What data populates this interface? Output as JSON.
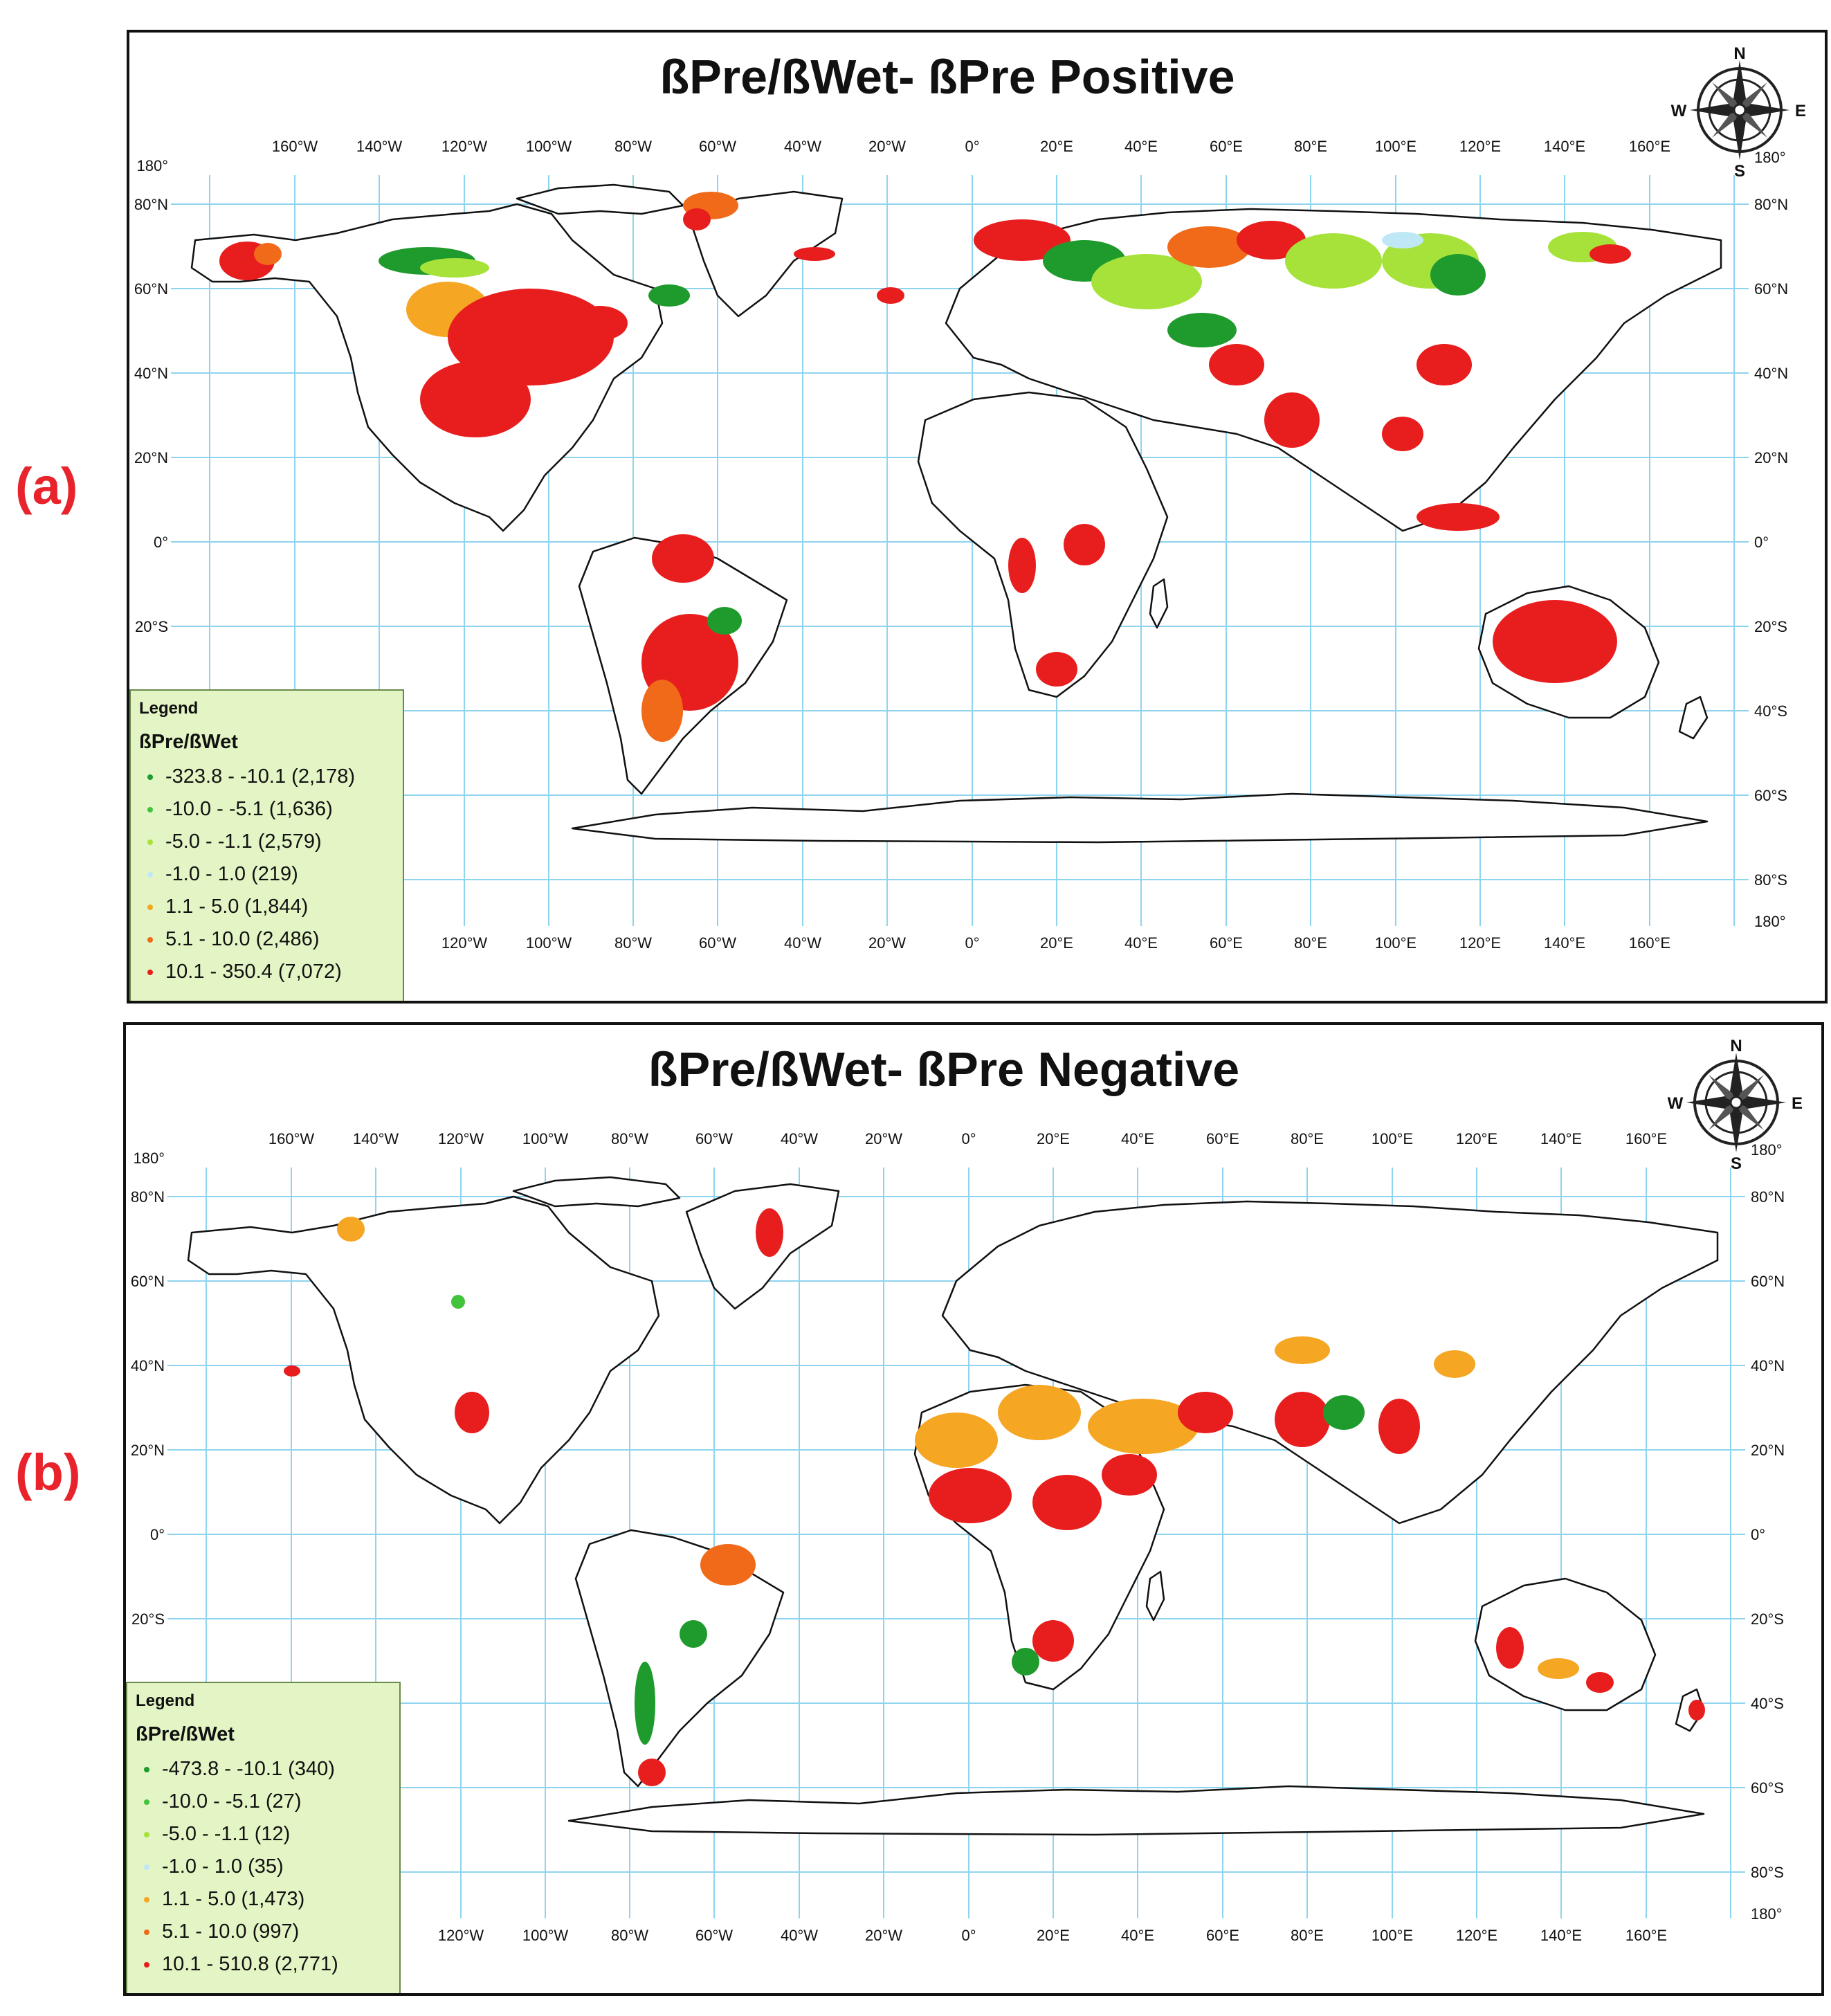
{
  "panels": [
    {
      "label": "(a)",
      "title": "ßPre/ßWet- ßPre Positive",
      "legend": {
        "heading": "Legend",
        "subtitle": "ßPre/ßWet",
        "classes": [
          {
            "range": "-323.8 - -10.1 (2,178)",
            "color": "#1f9a2c"
          },
          {
            "range": "-10.0 - -5.1 (1,636)",
            "color": "#43c23c"
          },
          {
            "range": "-5.0 - -1.1 (2,579)",
            "color": "#a6e23a"
          },
          {
            "range": "-1.0 - 1.0 (219)",
            "color": "#bfe8f7"
          },
          {
            "range": "1.1 - 5.0 (1,844)",
            "color": "#f5a623"
          },
          {
            "range": "5.1 - 10.0 (2,486)",
            "color": "#f06a1a"
          },
          {
            "range": "10.1 - 350.4 (7,072)",
            "color": "#e81e1e"
          }
        ]
      }
    },
    {
      "label": "(b)",
      "title": "ßPre/ßWet- ßPre Negative",
      "legend": {
        "heading": "Legend",
        "subtitle": "ßPre/ßWet",
        "classes": [
          {
            "range": "-473.8 - -10.1 (340)",
            "color": "#1f9a2c"
          },
          {
            "range": "-10.0 - -5.1 (27)",
            "color": "#43c23c"
          },
          {
            "range": "-5.0 - -1.1 (12)",
            "color": "#a6e23a"
          },
          {
            "range": "-1.0 - 1.0 (35)",
            "color": "#bfe8f7"
          },
          {
            "range": "1.1 - 5.0 (1,473)",
            "color": "#f5a623"
          },
          {
            "range": "5.1 - 10.0 (997)",
            "color": "#f06a1a"
          },
          {
            "range": "10.1 - 510.8 (2,771)",
            "color": "#e81e1e"
          }
        ]
      }
    }
  ],
  "grid": {
    "top_lon_labels": [
      "160°W",
      "140°W",
      "120°W",
      "100°W",
      "80°W",
      "60°W",
      "40°W",
      "20°W",
      "0°",
      "20°E",
      "40°E",
      "60°E",
      "80°E",
      "100°E",
      "120°E",
      "140°E",
      "160°E"
    ],
    "bottom_lon_labels": [
      "120°W",
      "100°W",
      "80°W",
      "60°W",
      "40°W",
      "20°W",
      "0°",
      "20°E",
      "40°E",
      "60°E",
      "80°E",
      "100°E",
      "120°E",
      "140°E",
      "160°E"
    ],
    "left_lat_labels": [
      "180°",
      "80°N",
      "60°N",
      "40°N",
      "20°N",
      "0°",
      "20°S"
    ],
    "right_lat_labels": [
      "180°",
      "80°N",
      "60°N",
      "40°N",
      "20°N",
      "0°",
      "20°S",
      "40°S",
      "60°S",
      "80°S",
      "180°"
    ],
    "grid_color": "#8fd4ef"
  },
  "compass": {
    "n": "N",
    "s": "S",
    "e": "E",
    "w": "W"
  },
  "map_colors": {
    "land_outline": "#111111",
    "background": "#ffffff"
  }
}
